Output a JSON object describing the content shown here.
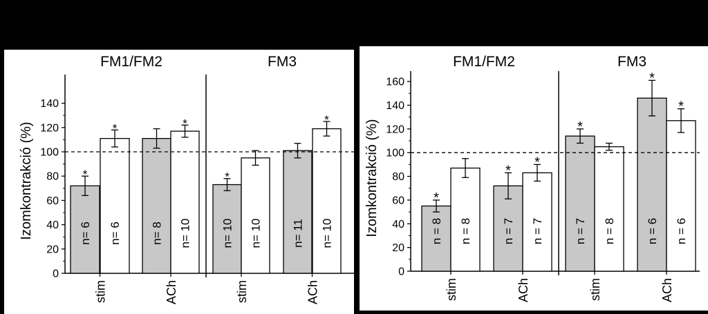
{
  "chart_data": [
    {
      "type": "bar",
      "ylabel": "Izomkontrakció (%)",
      "ylim": [
        0,
        140
      ],
      "yticks": [
        0,
        20,
        40,
        60,
        80,
        100,
        120,
        140
      ],
      "reference_line": 100,
      "panels": [
        {
          "title": "FM1/FM2",
          "groups": [
            {
              "label": "stim",
              "bars": [
                {
                  "fill": "#c8c8c8",
                  "value": 72,
                  "error": 8,
                  "n_label": "n= 6",
                  "significant": true
                },
                {
                  "fill": "#ffffff",
                  "value": 111,
                  "error": 7,
                  "n_label": "n= 6",
                  "significant": true
                }
              ]
            },
            {
              "label": "ACh",
              "bars": [
                {
                  "fill": "#c8c8c8",
                  "value": 111,
                  "error": 8,
                  "n_label": "n= 8",
                  "significant": false
                },
                {
                  "fill": "#ffffff",
                  "value": 117,
                  "error": 5,
                  "n_label": "n= 10",
                  "significant": true
                }
              ]
            }
          ]
        },
        {
          "title": "FM3",
          "groups": [
            {
              "label": "stim",
              "bars": [
                {
                  "fill": "#c8c8c8",
                  "value": 73,
                  "error": 5,
                  "n_label": "n= 10",
                  "significant": true
                },
                {
                  "fill": "#ffffff",
                  "value": 95,
                  "error": 6,
                  "n_label": "n= 10",
                  "significant": false
                }
              ]
            },
            {
              "label": "ACh",
              "bars": [
                {
                  "fill": "#c8c8c8",
                  "value": 101,
                  "error": 6,
                  "n_label": "n= 11",
                  "significant": false
                },
                {
                  "fill": "#ffffff",
                  "value": 119,
                  "error": 6,
                  "n_label": "n= 10",
                  "significant": true
                }
              ]
            }
          ]
        }
      ]
    },
    {
      "type": "bar",
      "ylabel": "Izomkontrakció (%)",
      "ylim": [
        0,
        165
      ],
      "yticks": [
        0,
        20,
        40,
        60,
        80,
        100,
        120,
        140,
        160
      ],
      "reference_line": 100,
      "panels": [
        {
          "title": "FM1/FM2",
          "groups": [
            {
              "label": "stim",
              "bars": [
                {
                  "fill": "#c8c8c8",
                  "value": 55,
                  "error": 5,
                  "n_label": "n = 8",
                  "significant": true
                },
                {
                  "fill": "#ffffff",
                  "value": 87,
                  "error": 8,
                  "n_label": "n = 8",
                  "significant": false
                }
              ]
            },
            {
              "label": "ACh",
              "bars": [
                {
                  "fill": "#c8c8c8",
                  "value": 72,
                  "error": 11,
                  "n_label": "n = 7",
                  "significant": true
                },
                {
                  "fill": "#ffffff",
                  "value": 83,
                  "error": 7,
                  "n_label": "n = 7",
                  "significant": true
                }
              ]
            }
          ]
        },
        {
          "title": "FM3",
          "groups": [
            {
              "label": "stim",
              "bars": [
                {
                  "fill": "#c8c8c8",
                  "value": 114,
                  "error": 6,
                  "n_label": "n = 7",
                  "significant": true
                },
                {
                  "fill": "#ffffff",
                  "value": 105,
                  "error": 3,
                  "n_label": "n = 8",
                  "significant": false
                }
              ]
            },
            {
              "label": "ACh",
              "bars": [
                {
                  "fill": "#c8c8c8",
                  "value": 146,
                  "error": 15,
                  "n_label": "n = 6",
                  "significant": true
                },
                {
                  "fill": "#ffffff",
                  "value": 127,
                  "error": 10,
                  "n_label": "n = 6",
                  "significant": true
                }
              ]
            }
          ]
        }
      ]
    }
  ],
  "marks": {
    "significance": "*"
  }
}
